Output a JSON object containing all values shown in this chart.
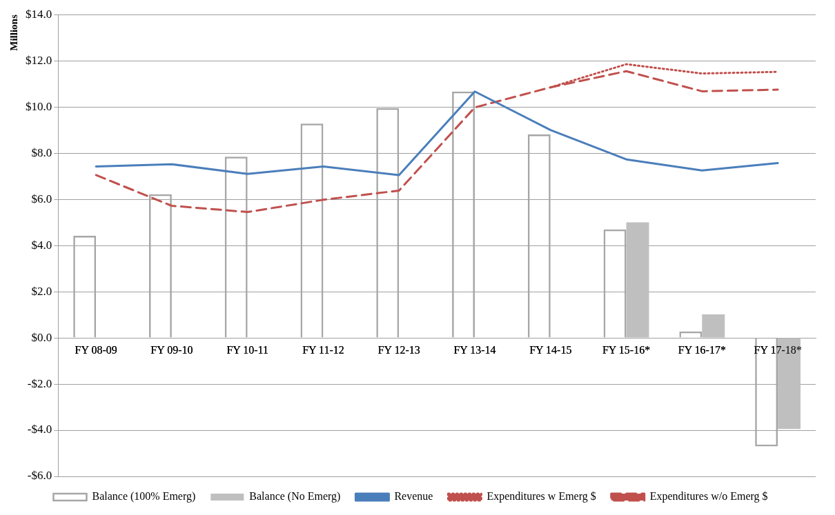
{
  "chart_data": {
    "type": "bar",
    "ylabel": "Millions",
    "categories": [
      "FY 08-09",
      "FY 09-10",
      "FY 10-11",
      "FY 11-12",
      "FY 12-13",
      "FY 13-14",
      "FY 14-15",
      "FY 15-16*",
      "FY 16-17*",
      "FY 17-18*"
    ],
    "series": [
      {
        "name": "Balance (100% Emerg)",
        "color": "#a6a6a6",
        "line_style": "solid",
        "values": [
          4.42,
          6.22,
          7.85,
          9.28,
          9.95,
          10.67,
          8.81,
          4.7,
          0.28,
          -4.7
        ]
      },
      {
        "name": "Balance (No Emerg)",
        "color": "#bfbfbf",
        "values": [
          null,
          null,
          null,
          null,
          null,
          null,
          null,
          5.0,
          1.02,
          -3.95
        ]
      },
      {
        "name": "Revenue",
        "type": "line",
        "color": "#4a7ebb",
        "line_style": "solid",
        "values": [
          7.42,
          7.52,
          7.1,
          7.42,
          7.05,
          10.67,
          9.0,
          7.73,
          7.25,
          7.57
        ]
      },
      {
        "name": "Expenditures w Emerg $",
        "type": "line",
        "color": "#c0504d",
        "line_style": "dotted",
        "values": [
          null,
          null,
          null,
          null,
          null,
          null,
          10.85,
          11.85,
          11.45,
          11.52
        ]
      },
      {
        "name": "Expenditures w/o Emerg $",
        "type": "line",
        "color": "#c0504d",
        "line_style": "dashed",
        "values": [
          7.05,
          5.72,
          5.45,
          5.98,
          6.38,
          9.98,
          10.85,
          11.55,
          10.68,
          10.75
        ]
      }
    ],
    "ylim": [
      -6,
      14
    ],
    "yticks": [
      {
        "value": -6,
        "label": "-$6.0"
      },
      {
        "value": -4,
        "label": "-$4.0"
      },
      {
        "value": -2,
        "label": "-$2.0"
      },
      {
        "value": 0,
        "label": "$0.0"
      },
      {
        "value": 2,
        "label": "$2.0"
      },
      {
        "value": 4,
        "label": "$4.0"
      },
      {
        "value": 6,
        "label": "$6.0"
      },
      {
        "value": 8,
        "label": "$8.0"
      },
      {
        "value": 10,
        "label": "$10.0"
      },
      {
        "value": 12,
        "label": "$12.0"
      },
      {
        "value": 14,
        "label": "$14.0"
      }
    ],
    "grid": "y",
    "legend": "bottom",
    "marker": "none"
  }
}
